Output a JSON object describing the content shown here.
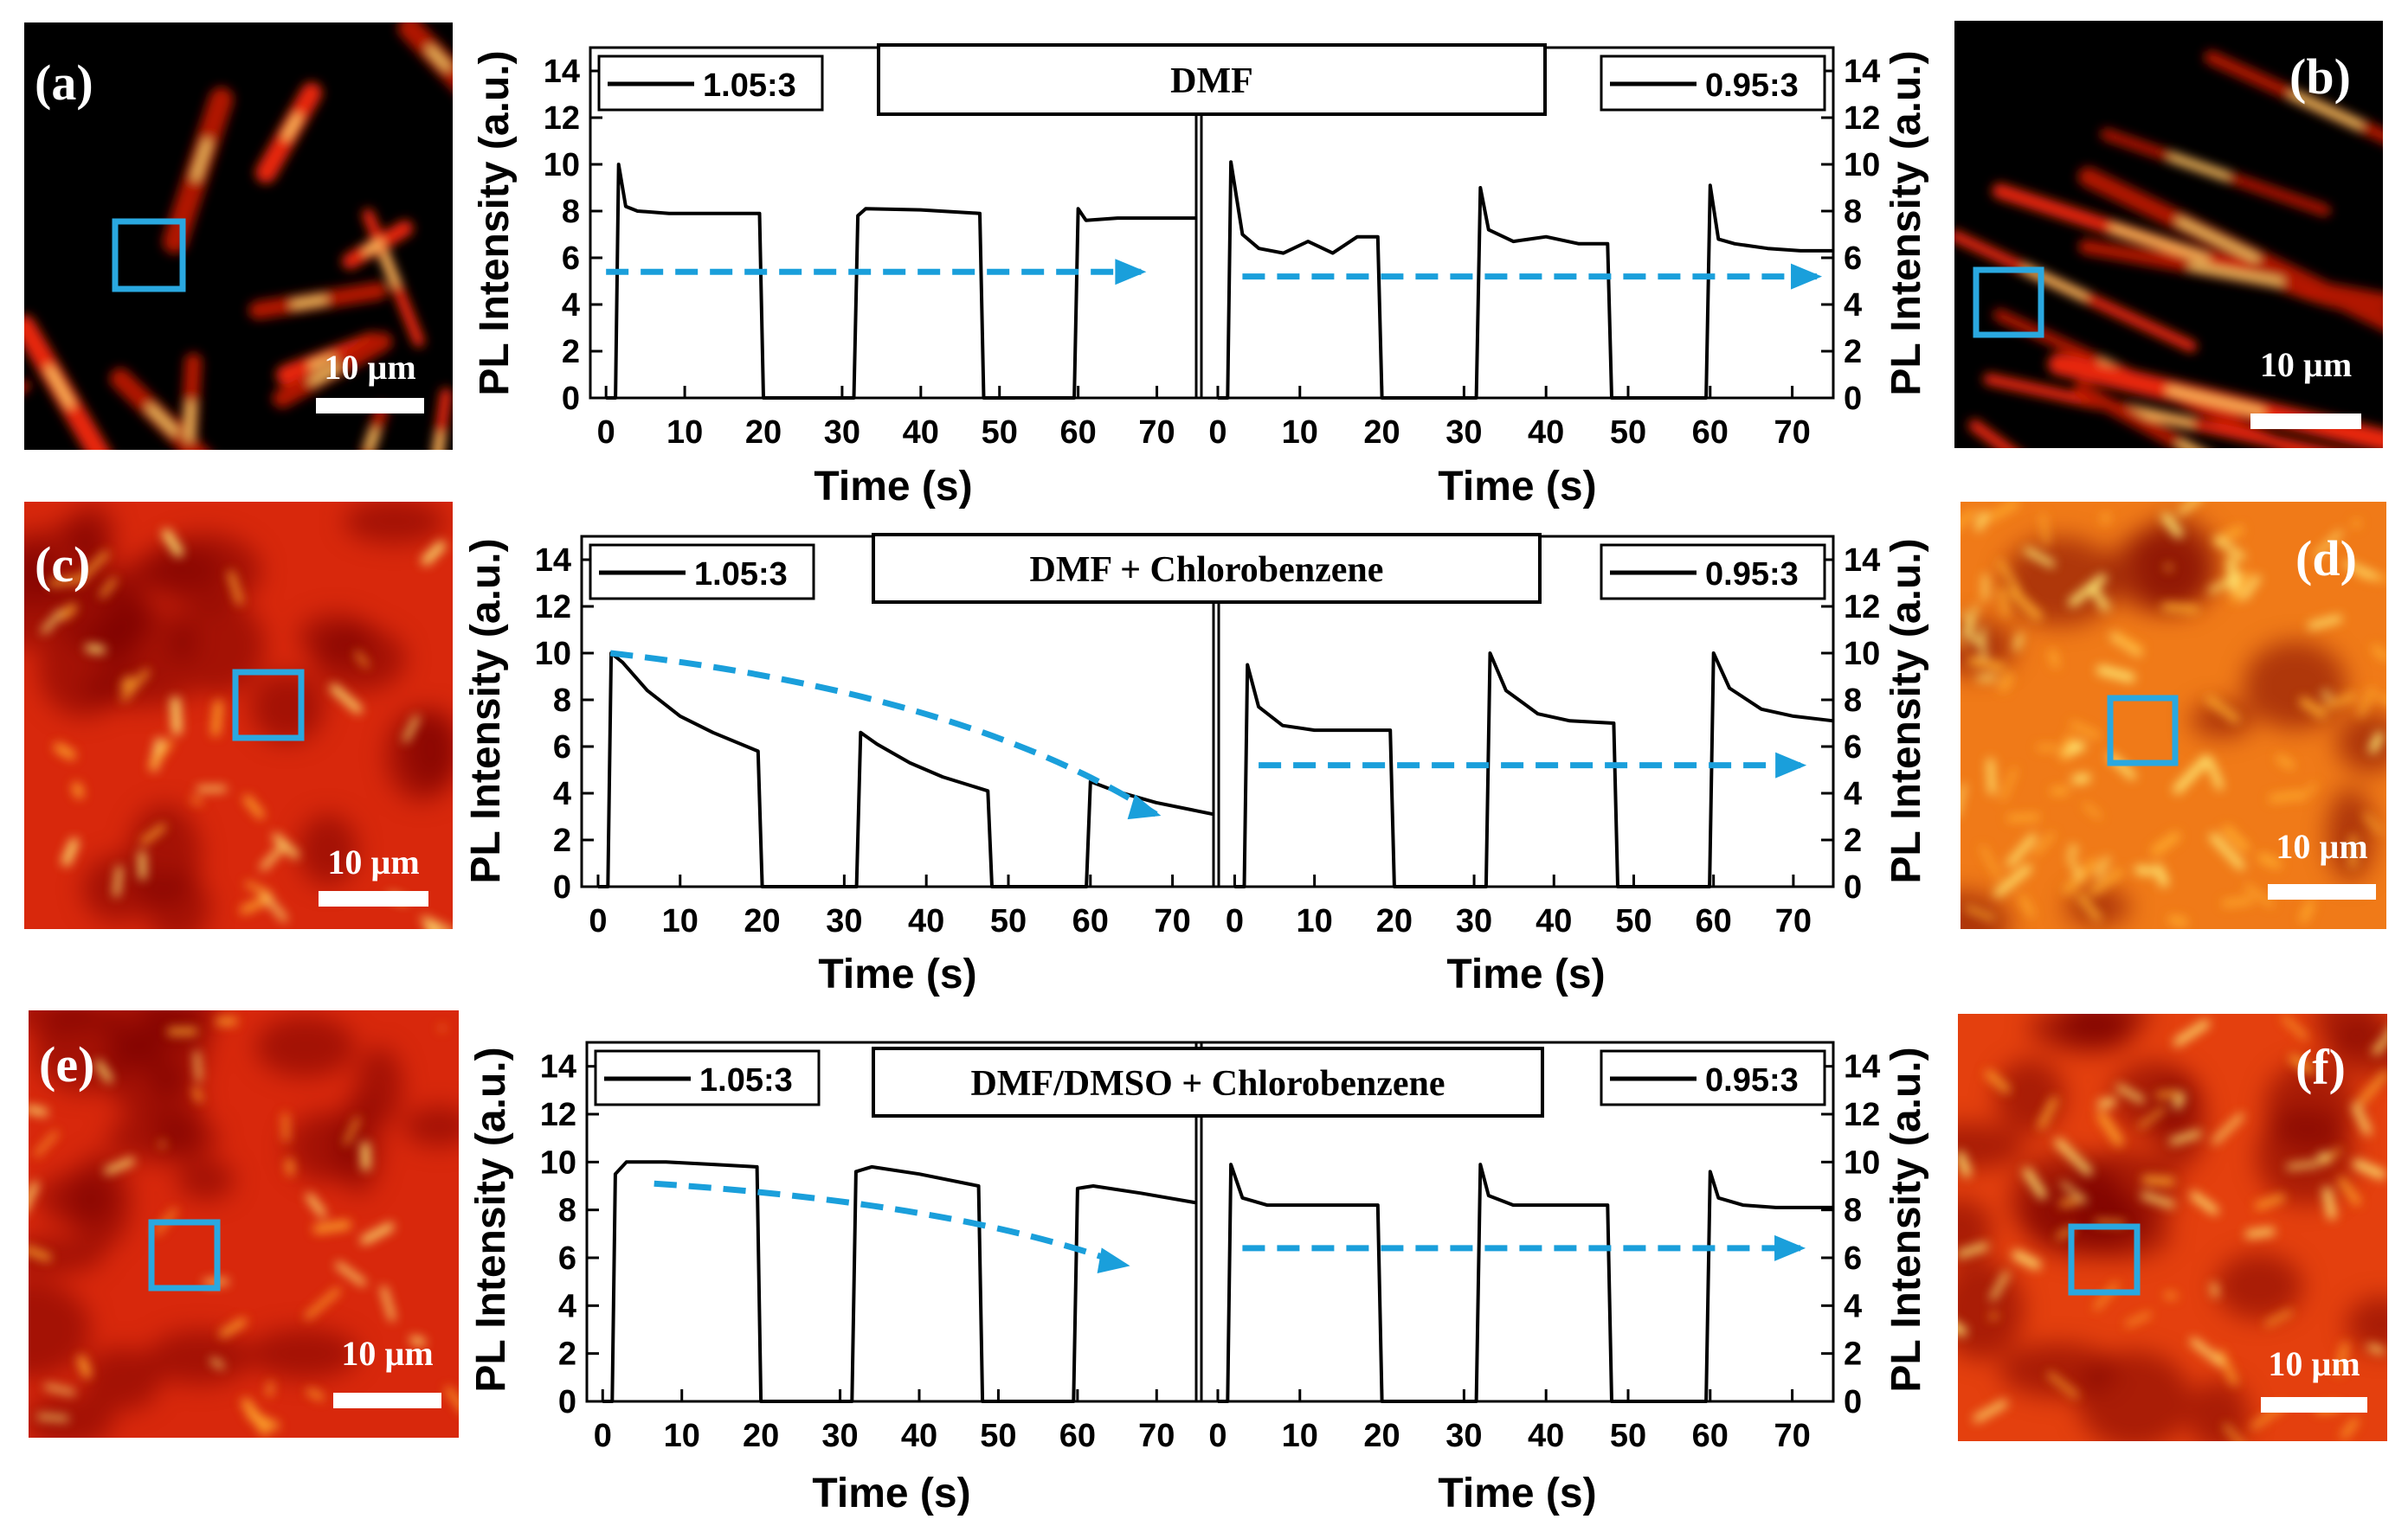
{
  "colors": {
    "trace": "#000000",
    "arrow": "#1a9fdb",
    "roi_box": "#2aa8e0",
    "scale_bar": "#ffffff",
    "map_low": "#1a0000",
    "map_mid": "#e8250c",
    "map_high": "#fff27a"
  },
  "panels": [
    {
      "id": "a",
      "label": "(a)",
      "scale": "10 µm",
      "texture": "fibers-sparse"
    },
    {
      "id": "b",
      "label": "(b)",
      "scale": "10 µm",
      "texture": "fibers-rods"
    },
    {
      "id": "c",
      "label": "(c)",
      "scale": "10 µm",
      "texture": "dense-dark"
    },
    {
      "id": "d",
      "label": "(d)",
      "scale": "10 µm",
      "texture": "dense-bright"
    },
    {
      "id": "e",
      "label": "(e)",
      "scale": "10 µm",
      "texture": "dense-dark"
    },
    {
      "id": "f",
      "label": "(f)",
      "scale": "10 µm",
      "texture": "dense-mid"
    }
  ],
  "chart_data": [
    {
      "type": "line",
      "row": 0,
      "title": "DMF",
      "xlabel": "Time (s)",
      "ylabel": "PL Intensity (a.u.)",
      "xlim": [
        -2,
        75
      ],
      "ylim": [
        0,
        15
      ],
      "xticks": [
        0,
        10,
        20,
        30,
        40,
        50,
        60,
        70
      ],
      "yticks": [
        0,
        2,
        4,
        6,
        8,
        10,
        12,
        14
      ],
      "series": [
        {
          "name": "1.05:3",
          "side": "left",
          "x": [
            0,
            1.2,
            1.6,
            2.5,
            4,
            8,
            19.5,
            20,
            31.5,
            32,
            33,
            40,
            47.5,
            48,
            59.5,
            60,
            61,
            65,
            75
          ],
          "y": [
            0,
            0,
            10,
            8.2,
            8,
            7.9,
            7.9,
            0,
            0,
            7.8,
            8.1,
            8.05,
            7.9,
            0,
            0,
            8.1,
            7.6,
            7.7,
            7.7
          ],
          "arrow": {
            "x": [
              0,
              68
            ],
            "y": [
              5.4,
              5.4
            ]
          }
        },
        {
          "name": "0.95:3",
          "side": "right",
          "x": [
            0,
            1.2,
            1.6,
            3,
            5,
            8,
            11,
            14,
            17,
            19.5,
            20,
            31.5,
            32,
            33,
            36,
            40,
            44,
            47.5,
            48,
            59.5,
            60,
            61,
            63,
            67,
            71,
            75
          ],
          "y": [
            0,
            0,
            10.1,
            7,
            6.4,
            6.2,
            6.7,
            6.2,
            6.9,
            6.9,
            0,
            0,
            9,
            7.2,
            6.7,
            6.9,
            6.6,
            6.6,
            0,
            0,
            9.1,
            6.8,
            6.6,
            6.4,
            6.3,
            6.3
          ],
          "arrow": {
            "x": [
              3,
              73
            ],
            "y": [
              5.2,
              5.2
            ]
          }
        }
      ]
    },
    {
      "type": "line",
      "row": 1,
      "title": "DMF + Chlorobenzene",
      "xlabel": "Time (s)",
      "ylabel": "PL Intensity (a.u.)",
      "xlim": [
        -2,
        75
      ],
      "ylim": [
        0,
        15
      ],
      "xticks": [
        0,
        10,
        20,
        30,
        40,
        50,
        60,
        70
      ],
      "yticks": [
        0,
        2,
        4,
        6,
        8,
        10,
        12,
        14
      ],
      "series": [
        {
          "name": "1.05:3",
          "side": "left",
          "x": [
            0,
            1.2,
            1.6,
            3,
            6,
            10,
            14,
            19.5,
            20,
            31.5,
            32,
            34,
            38,
            42,
            47.5,
            48,
            59.5,
            60,
            63,
            68,
            75
          ],
          "y": [
            0,
            0,
            10,
            9.6,
            8.4,
            7.3,
            6.6,
            5.8,
            0,
            0,
            6.6,
            6.1,
            5.3,
            4.7,
            4.1,
            0,
            0,
            4.5,
            4.1,
            3.6,
            3.1
          ],
          "arrow": {
            "x": [
              1.5,
              68
            ],
            "y": [
              10,
              3.1
            ]
          }
        },
        {
          "name": "0.95:3",
          "side": "right",
          "x": [
            0,
            1.2,
            1.6,
            3,
            6,
            10,
            19.5,
            20,
            31.5,
            32,
            34,
            38,
            42,
            47.5,
            48,
            59.5,
            60,
            62,
            66,
            70,
            75
          ],
          "y": [
            0,
            0,
            9.5,
            7.7,
            6.9,
            6.7,
            6.7,
            0,
            0,
            10,
            8.4,
            7.4,
            7.1,
            7,
            0,
            0,
            10,
            8.5,
            7.6,
            7.3,
            7.1
          ],
          "arrow": {
            "x": [
              3,
              71
            ],
            "y": [
              5.2,
              5.2
            ]
          }
        }
      ]
    },
    {
      "type": "line",
      "row": 2,
      "title": "DMF/DMSO + Chlorobenzene",
      "xlabel": "Time (s)",
      "ylabel": "PL Intensity (a.u.)",
      "xlim": [
        -2,
        75
      ],
      "ylim": [
        0,
        15
      ],
      "xticks": [
        0,
        10,
        20,
        30,
        40,
        50,
        60,
        70
      ],
      "yticks": [
        0,
        2,
        4,
        6,
        8,
        10,
        12,
        14
      ],
      "series": [
        {
          "name": "1.05:3",
          "side": "left",
          "x": [
            0,
            1.2,
            1.6,
            3,
            8,
            14,
            19.5,
            20,
            31.5,
            32,
            34,
            40,
            47.5,
            48,
            59.5,
            60,
            62,
            68,
            75
          ],
          "y": [
            0,
            0,
            9.5,
            10,
            10,
            9.9,
            9.8,
            0,
            0,
            9.6,
            9.8,
            9.5,
            9,
            0,
            0,
            8.9,
            9,
            8.7,
            8.3
          ],
          "arrow": {
            "x": [
              6.5,
              66
            ],
            "y": [
              9.1,
              5.7
            ]
          }
        },
        {
          "name": "0.95:3",
          "side": "right",
          "x": [
            0,
            1.2,
            1.6,
            3,
            6,
            10,
            19.5,
            20,
            31.5,
            32,
            33,
            36,
            47.5,
            48,
            59.5,
            60,
            61,
            64,
            68,
            75
          ],
          "y": [
            0,
            0,
            9.9,
            8.5,
            8.2,
            8.2,
            8.2,
            0,
            0,
            9.9,
            8.6,
            8.2,
            8.2,
            0,
            0,
            9.6,
            8.5,
            8.2,
            8.1,
            8.1
          ],
          "arrow": {
            "x": [
              3,
              71
            ],
            "y": [
              6.4,
              6.4
            ]
          }
        }
      ]
    }
  ]
}
